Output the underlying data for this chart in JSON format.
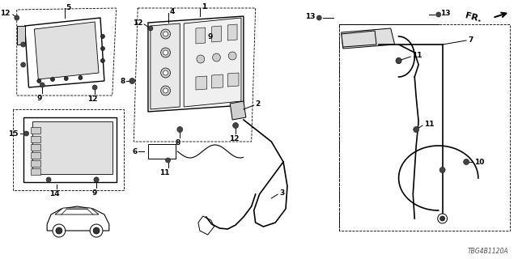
{
  "bg_color": "#ffffff",
  "diagram_code": "TBG4B1120A",
  "fs": 6.5
}
